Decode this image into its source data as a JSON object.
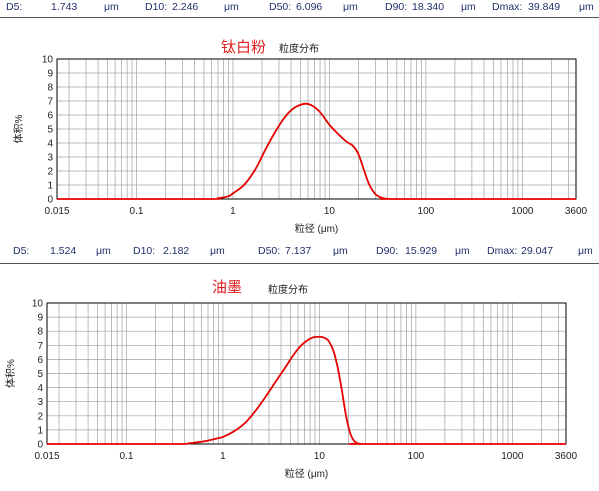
{
  "panels": [
    {
      "stats": [
        {
          "label": "D5:",
          "value": "1.743",
          "unit": "μm"
        },
        {
          "label": "D10:",
          "value": "2.246",
          "unit": "μm"
        },
        {
          "label": "D50:",
          "value": "6.096",
          "unit": "μm"
        },
        {
          "label": "D90:",
          "value": "18.340",
          "unit": "μm"
        },
        {
          "label": "Dmax:",
          "value": "39.849",
          "unit": "μm"
        }
      ],
      "sample_name": "钛白粉",
      "subtitle": "粒度分布"
    },
    {
      "stats": [
        {
          "label": "D5:",
          "value": "1.524",
          "unit": "μm"
        },
        {
          "label": "D10:",
          "value": "2.182",
          "unit": "μm"
        },
        {
          "label": "D50:",
          "value": "7.137",
          "unit": "μm"
        },
        {
          "label": "D90:",
          "value": "15.929",
          "unit": "μm"
        },
        {
          "label": "Dmax:",
          "value": "29.047",
          "unit": "μm"
        }
      ],
      "sample_name": "油墨",
      "subtitle": "粒度分布"
    }
  ],
  "colors": {
    "curve": "#e60000",
    "title": "#e02020",
    "stats": "#1f2f6b",
    "grid": "#a0a0a0"
  },
  "chart_data": [
    {
      "type": "line",
      "title": "钛白粉",
      "subtitle": "粒度分布",
      "xlabel": "粒径 (μm)",
      "ylabel": "体积%",
      "xscale": "log",
      "xlim": [
        0.015,
        3600
      ],
      "ylim": [
        0,
        10
      ],
      "xticks": [
        "0.015",
        "0.1",
        "1",
        "10",
        "100",
        "1000",
        "3600"
      ],
      "yticks": [
        "0",
        "1",
        "2",
        "3",
        "4",
        "5",
        "6",
        "7",
        "8",
        "9",
        "10"
      ],
      "grid": true,
      "series": [
        {
          "x": [
            0.015,
            0.5,
            0.7,
            0.9,
            1.0,
            1.3,
            1.7,
            2.2,
            2.8,
            3.5,
            4.3,
            5.5,
            6.5,
            8.0,
            10.0,
            12.5,
            15.0,
            17.5,
            20.0,
            23.0,
            26.0,
            30.0,
            35.0,
            40.0,
            50.0,
            3600
          ],
          "y": [
            0,
            0,
            0.05,
            0.2,
            0.4,
            1.0,
            2.1,
            3.6,
            4.9,
            5.9,
            6.5,
            6.8,
            6.7,
            6.2,
            5.3,
            4.6,
            4.1,
            3.8,
            3.2,
            2.0,
            1.0,
            0.35,
            0.08,
            0.01,
            0,
            0
          ]
        }
      ]
    },
    {
      "type": "line",
      "title": "油墨",
      "subtitle": "粒度分布",
      "xlabel": "粒径 (μm)",
      "ylabel": "体积%",
      "xscale": "log",
      "xlim": [
        0.015,
        3600
      ],
      "ylim": [
        0,
        10
      ],
      "xticks": [
        "0.015",
        "0.1",
        "1",
        "10",
        "100",
        "1000",
        "3600"
      ],
      "yticks": [
        "0",
        "1",
        "2",
        "3",
        "4",
        "5",
        "6",
        "7",
        "8",
        "9",
        "10"
      ],
      "grid": true,
      "series": [
        {
          "x": [
            0.015,
            0.3,
            0.45,
            0.65,
            0.85,
            1.0,
            1.3,
            1.7,
            2.2,
            2.8,
            3.5,
            4.5,
            5.5,
            6.5,
            7.5,
            8.5,
            9.5,
            10.5,
            11.5,
            12.5,
            14.0,
            15.5,
            17.0,
            19.0,
            21.0,
            23.0,
            25.0,
            27.0,
            30.0,
            3600
          ],
          "y": [
            0,
            0,
            0.05,
            0.2,
            0.38,
            0.5,
            0.9,
            1.5,
            2.4,
            3.4,
            4.4,
            5.5,
            6.4,
            7.0,
            7.35,
            7.55,
            7.6,
            7.6,
            7.5,
            7.3,
            6.6,
            5.4,
            3.9,
            1.9,
            0.7,
            0.2,
            0.05,
            0.01,
            0,
            0
          ]
        }
      ]
    }
  ]
}
